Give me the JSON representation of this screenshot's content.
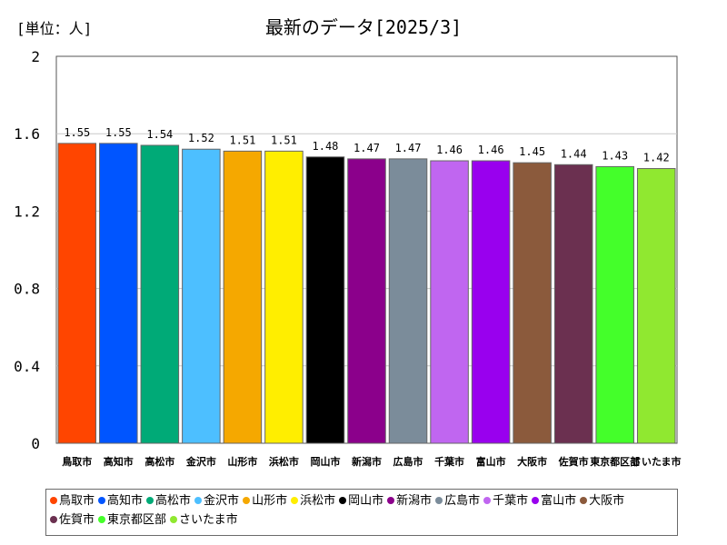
{
  "unit_label": "[単位：人]",
  "chart_data": {
    "type": "bar",
    "title": "最新のデータ[2025/3]",
    "xlabel": "",
    "ylabel": "",
    "ylim": [
      0,
      2
    ],
    "yticks": [
      0,
      0.4,
      0.8,
      1.2,
      1.6,
      2
    ],
    "ytick_labels": [
      "0",
      "0.4",
      "0.8",
      "1.2",
      "1.6",
      "2"
    ],
    "grid": true,
    "legend_position": "bottom",
    "categories": [
      "鳥取市",
      "高知市",
      "高松市",
      "金沢市",
      "山形市",
      "浜松市",
      "岡山市",
      "新潟市",
      "広島市",
      "千葉市",
      "富山市",
      "大阪市",
      "佐賀市",
      "東京都区部",
      "さいたま市"
    ],
    "values": [
      1.55,
      1.55,
      1.54,
      1.52,
      1.51,
      1.51,
      1.48,
      1.47,
      1.47,
      1.46,
      1.46,
      1.45,
      1.44,
      1.43,
      1.42
    ],
    "value_labels": [
      "1.55",
      "1.55",
      "1.54",
      "1.52",
      "1.51",
      "1.51",
      "1.48",
      "1.47",
      "1.47",
      "1.46",
      "1.46",
      "1.45",
      "1.44",
      "1.43",
      "1.42"
    ],
    "colors": [
      "#ff4500",
      "#0055ff",
      "#00aa77",
      "#4dbfff",
      "#f5a800",
      "#ffee00",
      "#000000",
      "#8b008b",
      "#7b8c9a",
      "#c066f0",
      "#9900ee",
      "#8b5a3c",
      "#6b3050",
      "#44ff2a",
      "#90e830"
    ]
  }
}
